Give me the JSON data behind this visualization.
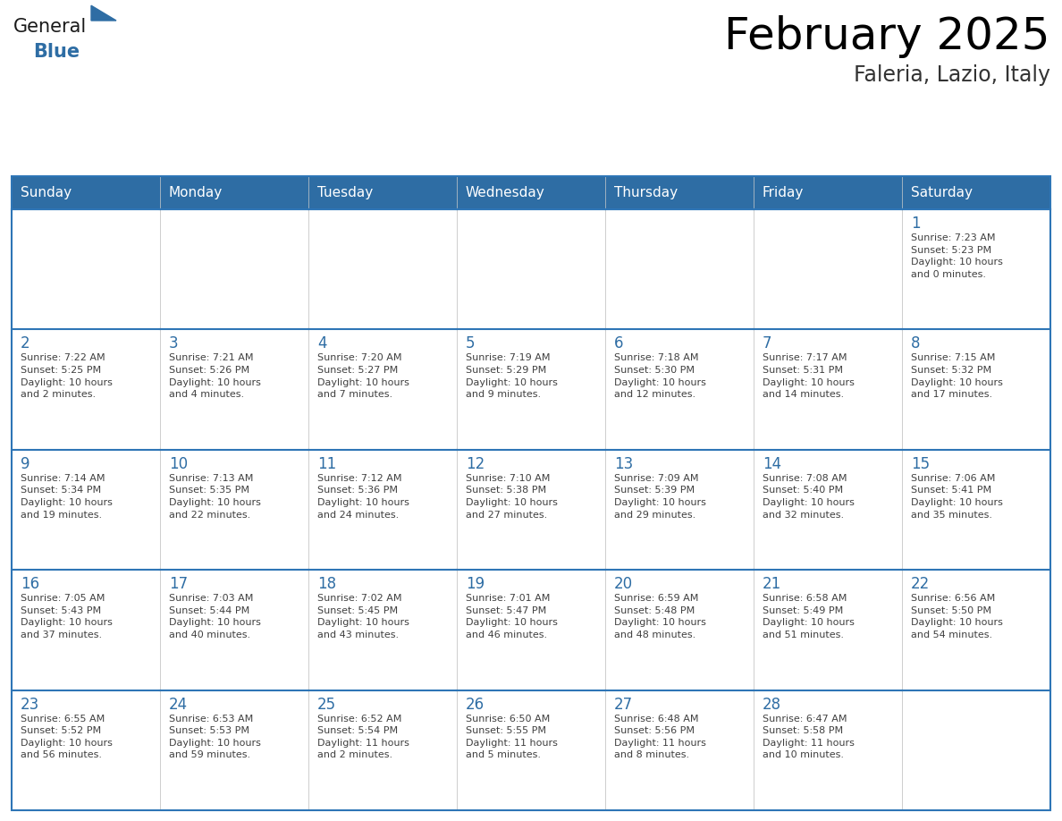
{
  "title": "February 2025",
  "subtitle": "Faleria, Lazio, Italy",
  "header_bg": "#2E6DA4",
  "header_text_color": "#FFFFFF",
  "cell_bg": "#FFFFFF",
  "cell_border_color": "#2E75B6",
  "day_number_color": "#2E6DA4",
  "text_color": "#404040",
  "days_of_week": [
    "Sunday",
    "Monday",
    "Tuesday",
    "Wednesday",
    "Thursday",
    "Friday",
    "Saturday"
  ],
  "weeks": [
    [
      {
        "day": null,
        "info": null
      },
      {
        "day": null,
        "info": null
      },
      {
        "day": null,
        "info": null
      },
      {
        "day": null,
        "info": null
      },
      {
        "day": null,
        "info": null
      },
      {
        "day": null,
        "info": null
      },
      {
        "day": 1,
        "info": "Sunrise: 7:23 AM\nSunset: 5:23 PM\nDaylight: 10 hours\nand 0 minutes."
      }
    ],
    [
      {
        "day": 2,
        "info": "Sunrise: 7:22 AM\nSunset: 5:25 PM\nDaylight: 10 hours\nand 2 minutes."
      },
      {
        "day": 3,
        "info": "Sunrise: 7:21 AM\nSunset: 5:26 PM\nDaylight: 10 hours\nand 4 minutes."
      },
      {
        "day": 4,
        "info": "Sunrise: 7:20 AM\nSunset: 5:27 PM\nDaylight: 10 hours\nand 7 minutes."
      },
      {
        "day": 5,
        "info": "Sunrise: 7:19 AM\nSunset: 5:29 PM\nDaylight: 10 hours\nand 9 minutes."
      },
      {
        "day": 6,
        "info": "Sunrise: 7:18 AM\nSunset: 5:30 PM\nDaylight: 10 hours\nand 12 minutes."
      },
      {
        "day": 7,
        "info": "Sunrise: 7:17 AM\nSunset: 5:31 PM\nDaylight: 10 hours\nand 14 minutes."
      },
      {
        "day": 8,
        "info": "Sunrise: 7:15 AM\nSunset: 5:32 PM\nDaylight: 10 hours\nand 17 minutes."
      }
    ],
    [
      {
        "day": 9,
        "info": "Sunrise: 7:14 AM\nSunset: 5:34 PM\nDaylight: 10 hours\nand 19 minutes."
      },
      {
        "day": 10,
        "info": "Sunrise: 7:13 AM\nSunset: 5:35 PM\nDaylight: 10 hours\nand 22 minutes."
      },
      {
        "day": 11,
        "info": "Sunrise: 7:12 AM\nSunset: 5:36 PM\nDaylight: 10 hours\nand 24 minutes."
      },
      {
        "day": 12,
        "info": "Sunrise: 7:10 AM\nSunset: 5:38 PM\nDaylight: 10 hours\nand 27 minutes."
      },
      {
        "day": 13,
        "info": "Sunrise: 7:09 AM\nSunset: 5:39 PM\nDaylight: 10 hours\nand 29 minutes."
      },
      {
        "day": 14,
        "info": "Sunrise: 7:08 AM\nSunset: 5:40 PM\nDaylight: 10 hours\nand 32 minutes."
      },
      {
        "day": 15,
        "info": "Sunrise: 7:06 AM\nSunset: 5:41 PM\nDaylight: 10 hours\nand 35 minutes."
      }
    ],
    [
      {
        "day": 16,
        "info": "Sunrise: 7:05 AM\nSunset: 5:43 PM\nDaylight: 10 hours\nand 37 minutes."
      },
      {
        "day": 17,
        "info": "Sunrise: 7:03 AM\nSunset: 5:44 PM\nDaylight: 10 hours\nand 40 minutes."
      },
      {
        "day": 18,
        "info": "Sunrise: 7:02 AM\nSunset: 5:45 PM\nDaylight: 10 hours\nand 43 minutes."
      },
      {
        "day": 19,
        "info": "Sunrise: 7:01 AM\nSunset: 5:47 PM\nDaylight: 10 hours\nand 46 minutes."
      },
      {
        "day": 20,
        "info": "Sunrise: 6:59 AM\nSunset: 5:48 PM\nDaylight: 10 hours\nand 48 minutes."
      },
      {
        "day": 21,
        "info": "Sunrise: 6:58 AM\nSunset: 5:49 PM\nDaylight: 10 hours\nand 51 minutes."
      },
      {
        "day": 22,
        "info": "Sunrise: 6:56 AM\nSunset: 5:50 PM\nDaylight: 10 hours\nand 54 minutes."
      }
    ],
    [
      {
        "day": 23,
        "info": "Sunrise: 6:55 AM\nSunset: 5:52 PM\nDaylight: 10 hours\nand 56 minutes."
      },
      {
        "day": 24,
        "info": "Sunrise: 6:53 AM\nSunset: 5:53 PM\nDaylight: 10 hours\nand 59 minutes."
      },
      {
        "day": 25,
        "info": "Sunrise: 6:52 AM\nSunset: 5:54 PM\nDaylight: 11 hours\nand 2 minutes."
      },
      {
        "day": 26,
        "info": "Sunrise: 6:50 AM\nSunset: 5:55 PM\nDaylight: 11 hours\nand 5 minutes."
      },
      {
        "day": 27,
        "info": "Sunrise: 6:48 AM\nSunset: 5:56 PM\nDaylight: 11 hours\nand 8 minutes."
      },
      {
        "day": 28,
        "info": "Sunrise: 6:47 AM\nSunset: 5:58 PM\nDaylight: 11 hours\nand 10 minutes."
      },
      {
        "day": null,
        "info": null
      }
    ]
  ],
  "logo_general_color": "#1a1a1a",
  "logo_blue_color": "#2E6DA4",
  "fig_width": 11.88,
  "fig_height": 9.18,
  "dpi": 100
}
